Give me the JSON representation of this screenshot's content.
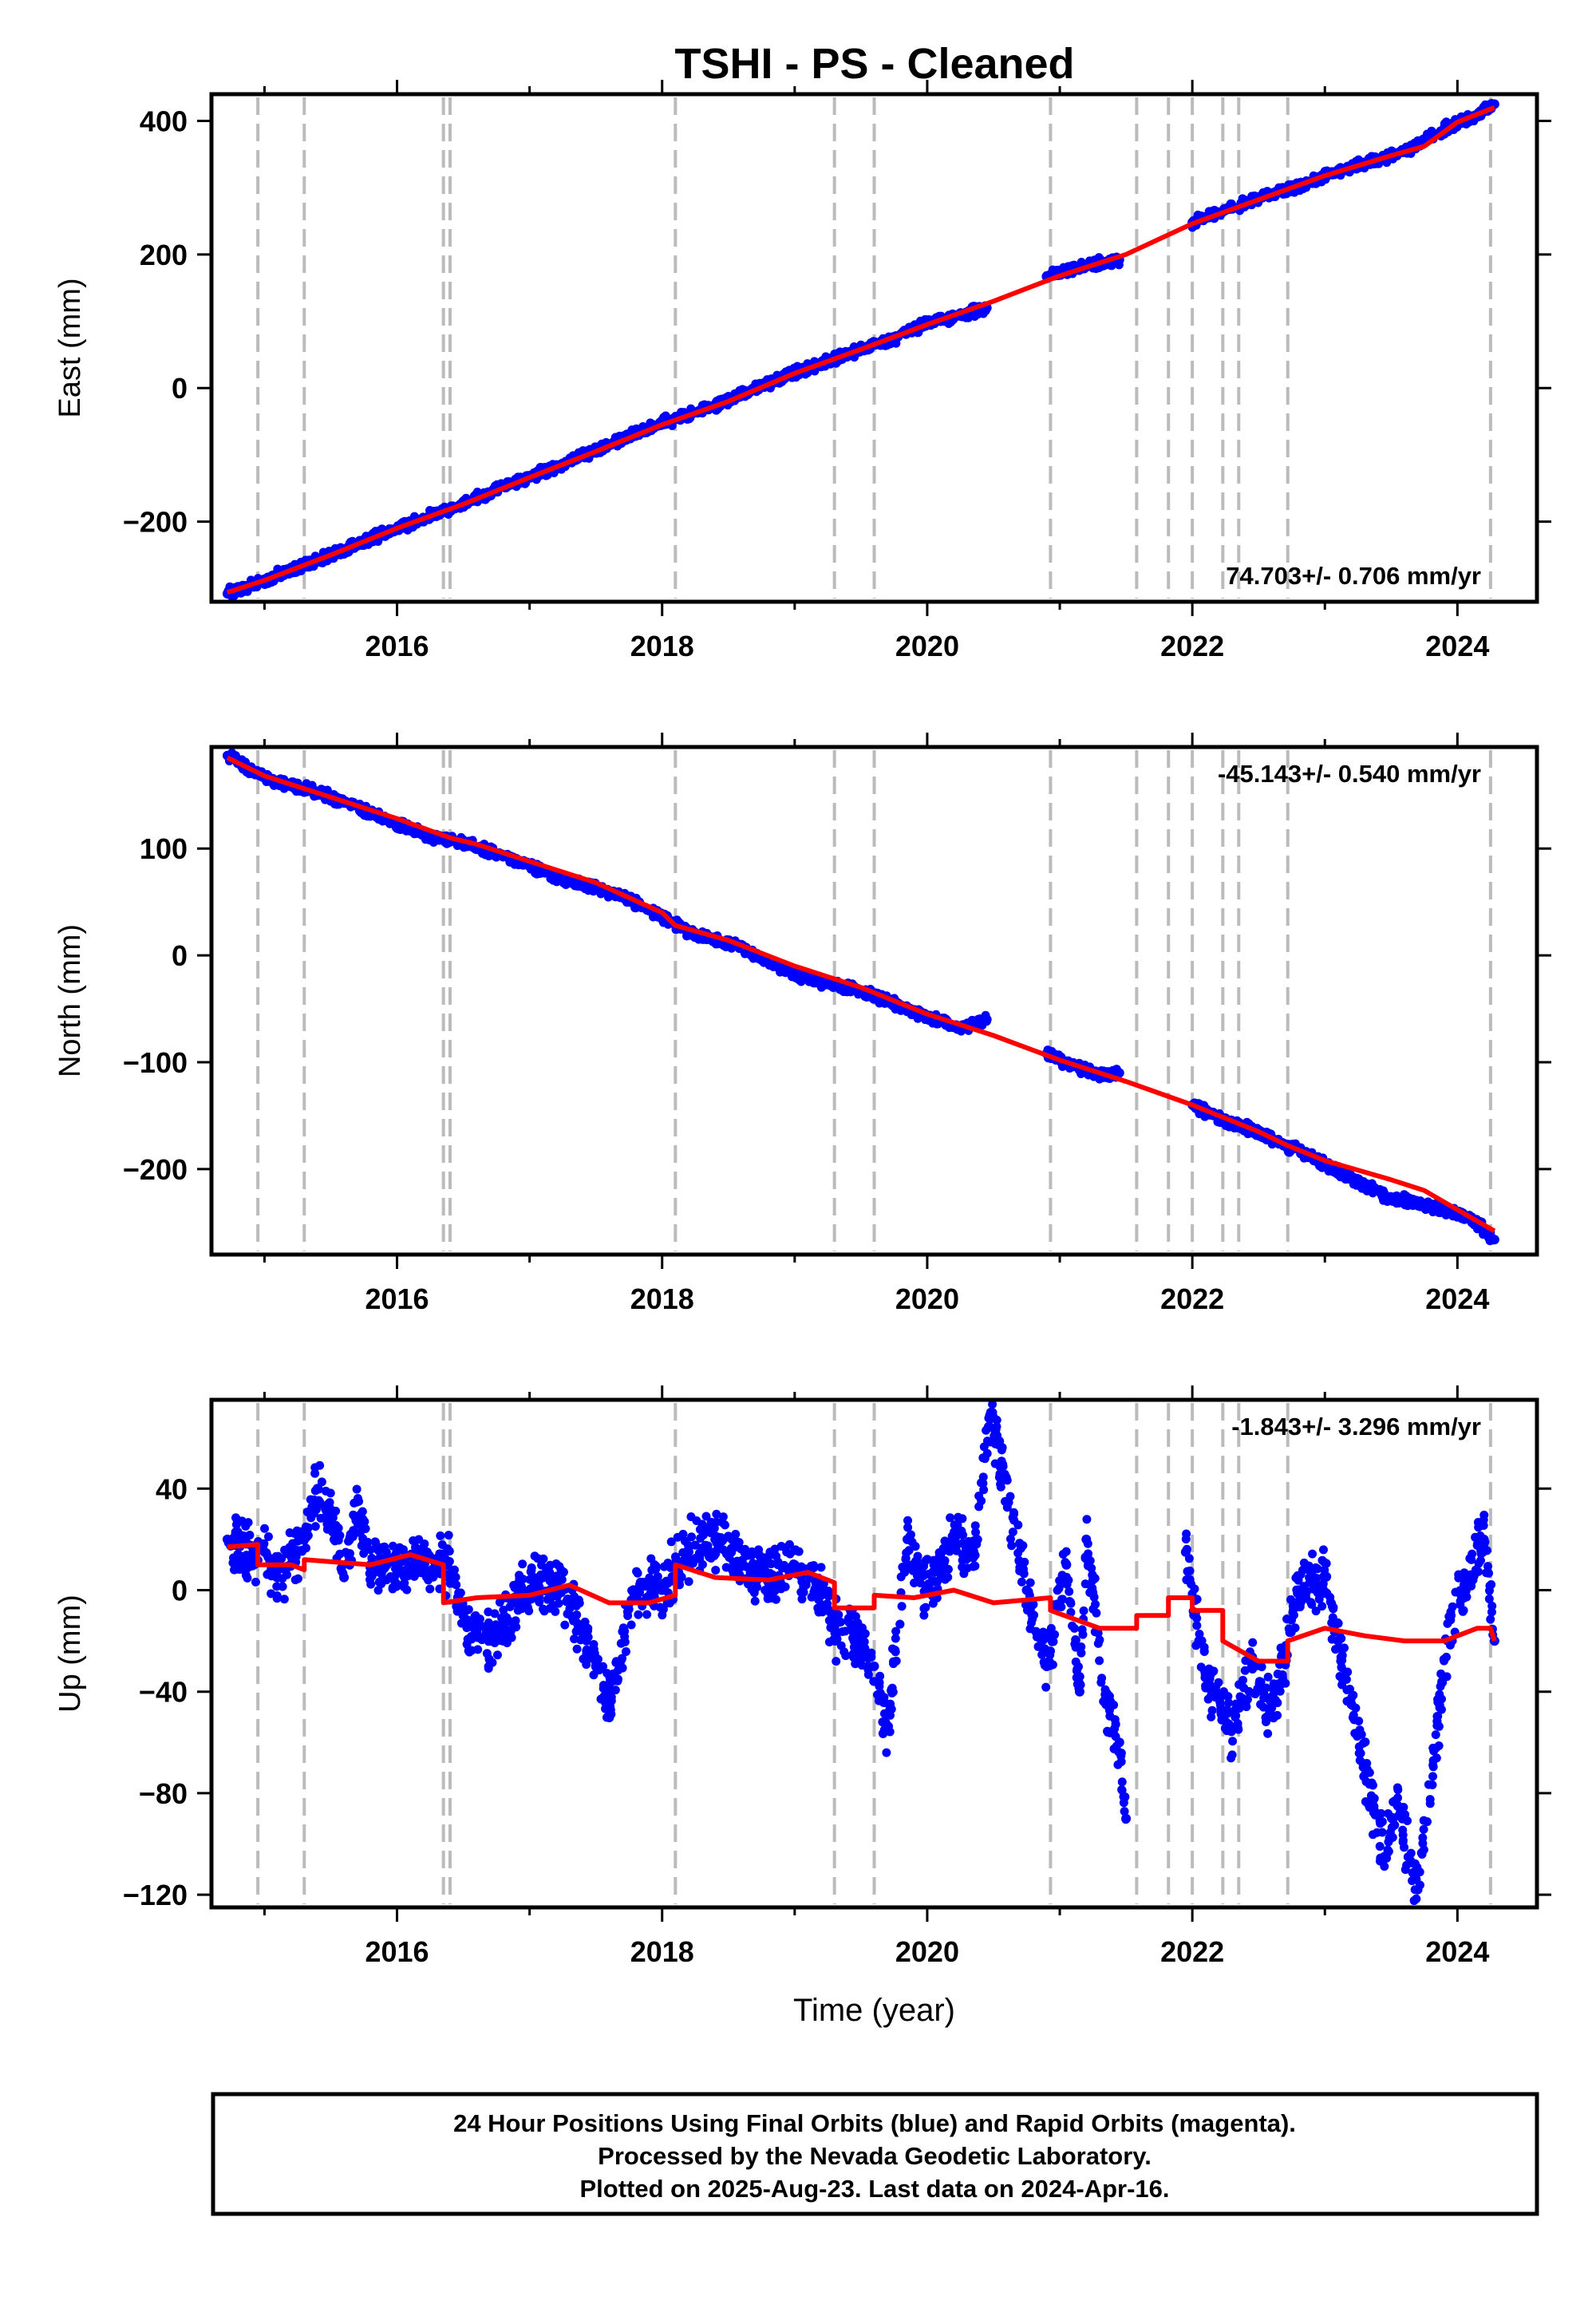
{
  "title": "TSHI  - PS - Cleaned",
  "footer": {
    "lines": [
      "24 Hour Positions Using Final Orbits (blue) and Rapid Orbits (magenta).",
      "Processed by the Nevada Geodetic Laboratory.",
      "Plotted on 2025-Aug-23. Last data on 2024-Apr-16."
    ]
  },
  "colors": {
    "points": "#0000ff",
    "model": "#ff0000",
    "breaks": "#bbbbbb",
    "axes": "#000000"
  },
  "chart_data": [
    {
      "type": "scatter",
      "panel": "east",
      "ylabel": "East (mm)",
      "xlabel": "",
      "rate_label": "74.703+/- 0.706 mm/yr",
      "xlim": [
        2014.6,
        2024.6
      ],
      "ylim": [
        -320,
        440
      ],
      "xticks": [
        2016,
        2018,
        2020,
        2022,
        2024
      ],
      "yticks": [
        -200,
        0,
        200,
        400
      ],
      "break_lines": [
        2014.95,
        2015.3,
        2016.35,
        2016.4,
        2018.1,
        2019.3,
        2019.6,
        2020.93,
        2021.58,
        2021.82,
        2022.0,
        2022.23,
        2022.35,
        2022.72,
        2024.25
      ],
      "series": [
        {
          "kind": "points",
          "x": [
            2014.72,
            2015.0,
            2015.25,
            2015.5,
            2015.75,
            2016.0,
            2016.25,
            2016.5,
            2016.75,
            2017.0,
            2017.25,
            2017.5,
            2017.75,
            2018.0,
            2018.25,
            2018.5,
            2018.75,
            2019.0,
            2019.25,
            2019.5,
            2019.75,
            2020.0,
            2020.25,
            2020.45,
            2020.9,
            2021.1,
            2021.3,
            2021.45,
            2022.0,
            2022.25,
            2022.5,
            2022.75,
            2023.0,
            2023.25,
            2023.5,
            2023.65,
            2023.9,
            2024.1,
            2024.28
          ],
          "y": [
            -308,
            -288,
            -268,
            -250,
            -230,
            -210,
            -192,
            -172,
            -152,
            -132,
            -114,
            -93,
            -72,
            -52,
            -36,
            -18,
            4,
            23,
            40,
            58,
            74,
            98,
            108,
            120,
            167,
            178,
            188,
            192,
            248,
            266,
            285,
            298,
            318,
            334,
            348,
            358,
            388,
            405,
            425
          ]
        },
        {
          "kind": "model",
          "x": [
            2014.72,
            2015.0,
            2015.5,
            2016.0,
            2016.5,
            2017.0,
            2017.5,
            2018.0,
            2018.5,
            2019.0,
            2019.5,
            2020.0,
            2020.5,
            2021.0,
            2021.5,
            2022.0,
            2022.5,
            2023.0,
            2023.5,
            2023.75,
            2024.0,
            2024.28
          ],
          "y": [
            -306,
            -288,
            -250,
            -210,
            -174,
            -134,
            -95,
            -55,
            -20,
            22,
            58,
            95,
            130,
            168,
            200,
            246,
            282,
            318,
            348,
            362,
            398,
            420
          ]
        }
      ]
    },
    {
      "type": "scatter",
      "panel": "north",
      "ylabel": "North (mm)",
      "xlabel": "",
      "rate_label": "-45.143+/- 0.540 mm/yr",
      "xlim": [
        2014.6,
        2024.6
      ],
      "ylim": [
        -280,
        195
      ],
      "xticks": [
        2016,
        2018,
        2020,
        2022,
        2024
      ],
      "yticks": [
        -200,
        -100,
        0,
        100
      ],
      "break_lines": [
        2014.95,
        2015.3,
        2016.35,
        2016.4,
        2018.1,
        2019.3,
        2019.6,
        2020.93,
        2021.58,
        2021.82,
        2022.0,
        2022.23,
        2022.35,
        2022.72,
        2024.25
      ],
      "series": [
        {
          "kind": "points",
          "x": [
            2014.72,
            2015.0,
            2015.25,
            2015.5,
            2015.75,
            2016.0,
            2016.25,
            2016.5,
            2016.75,
            2017.0,
            2017.25,
            2017.5,
            2017.75,
            2018.0,
            2018.25,
            2018.5,
            2018.75,
            2019.0,
            2019.25,
            2019.5,
            2019.75,
            2020.0,
            2020.25,
            2020.45,
            2020.9,
            2021.1,
            2021.3,
            2021.45,
            2022.0,
            2022.25,
            2022.5,
            2022.75,
            2023.0,
            2023.25,
            2023.5,
            2023.65,
            2023.9,
            2024.1,
            2024.28
          ],
          "y": [
            187,
            166,
            158,
            148,
            136,
            123,
            111,
            106,
            95,
            84,
            71,
            63,
            52,
            36,
            19,
            12,
            -2,
            -18,
            -26,
            -33,
            -45,
            -57,
            -68,
            -60,
            -92,
            -104,
            -112,
            -110,
            -140,
            -155,
            -165,
            -180,
            -196,
            -212,
            -228,
            -230,
            -238,
            -246,
            -266
          ]
        },
        {
          "kind": "model",
          "x": [
            2014.72,
            2015.0,
            2015.5,
            2016.0,
            2016.4,
            2016.6,
            2017.0,
            2017.5,
            2018.0,
            2018.1,
            2018.5,
            2019.0,
            2019.5,
            2020.0,
            2020.5,
            2021.0,
            2021.5,
            2022.0,
            2022.5,
            2022.72,
            2023.0,
            2023.5,
            2023.75,
            2024.0,
            2024.28
          ],
          "y": [
            185,
            168,
            148,
            128,
            110,
            104,
            88,
            68,
            40,
            28,
            14,
            -10,
            -30,
            -55,
            -75,
            -98,
            -118,
            -140,
            -165,
            -178,
            -192,
            -210,
            -220,
            -238,
            -258
          ]
        }
      ]
    },
    {
      "type": "scatter",
      "panel": "up",
      "ylabel": "Up (mm)",
      "xlabel": "Time (year)",
      "rate_label": "-1.843+/- 3.296 mm/yr",
      "xlim": [
        2014.6,
        2024.6
      ],
      "ylim": [
        -125,
        75
      ],
      "xticks": [
        2016,
        2018,
        2020,
        2022,
        2024
      ],
      "yticks": [
        -120,
        -80,
        -40,
        0,
        40
      ],
      "break_lines": [
        2014.95,
        2015.3,
        2016.35,
        2016.4,
        2018.1,
        2019.3,
        2019.6,
        2020.93,
        2021.58,
        2021.82,
        2022.0,
        2022.23,
        2022.35,
        2022.72,
        2024.25
      ],
      "series": [
        {
          "kind": "points",
          "x": [
            2014.72,
            2014.8,
            2015.0,
            2015.1,
            2015.3,
            2015.4,
            2015.5,
            2015.6,
            2015.7,
            2015.8,
            2016.0,
            2016.2,
            2016.38,
            2016.5,
            2016.7,
            2016.9,
            2017.0,
            2017.1,
            2017.3,
            2017.5,
            2017.6,
            2017.8,
            2018.0,
            2018.1,
            2018.2,
            2018.4,
            2018.6,
            2018.8,
            2019.0,
            2019.2,
            2019.3,
            2019.45,
            2019.6,
            2019.7,
            2019.85,
            2020.0,
            2020.1,
            2020.2,
            2020.35,
            2020.48,
            2020.75,
            2020.9,
            2021.05,
            2021.15,
            2021.2,
            2021.35,
            2021.45,
            2021.5,
            2021.95,
            2022.05,
            2022.15,
            2022.3,
            2022.45,
            2022.6,
            2022.8,
            2023.0,
            2023.1,
            2023.2,
            2023.3,
            2023.45,
            2023.55,
            2023.7,
            2023.95,
            2024.05,
            2024.2,
            2024.28
          ],
          "y": [
            20,
            14,
            15,
            5,
            20,
            40,
            30,
            5,
            35,
            10,
            8,
            12,
            10,
            -10,
            -20,
            -5,
            0,
            5,
            -5,
            -30,
            -45,
            0,
            0,
            10,
            15,
            20,
            10,
            5,
            10,
            0,
            -15,
            -20,
            -30,
            -55,
            20,
            0,
            10,
            20,
            15,
            70,
            0,
            -30,
            10,
            -40,
            20,
            -45,
            -60,
            -90,
            15,
            -20,
            -40,
            -55,
            -30,
            -50,
            0,
            5,
            -20,
            -45,
            -70,
            -105,
            -85,
            -118,
            -10,
            0,
            20,
            -20
          ]
        },
        {
          "kind": "model",
          "x": [
            2014.72,
            2014.95,
            2014.95,
            2015.2,
            2015.3,
            2015.3,
            2015.8,
            2016.1,
            2016.35,
            2016.35,
            2016.6,
            2017.0,
            2017.3,
            2017.6,
            2017.9,
            2018.1,
            2018.1,
            2018.4,
            2018.8,
            2019.1,
            2019.3,
            2019.3,
            2019.6,
            2019.6,
            2019.9,
            2020.2,
            2020.5,
            2020.93,
            2020.93,
            2021.3,
            2021.58,
            2021.58,
            2021.82,
            2021.82,
            2022.0,
            2022.0,
            2022.23,
            2022.23,
            2022.5,
            2022.72,
            2022.72,
            2023.0,
            2023.3,
            2023.6,
            2023.9,
            2024.15,
            2024.25,
            2024.28
          ],
          "y": [
            17,
            18,
            10,
            10,
            8,
            12,
            10,
            14,
            10,
            -5,
            -3,
            -2,
            2,
            -5,
            -5,
            -2,
            10,
            5,
            4,
            7,
            3,
            -7,
            -7,
            -2,
            -3,
            0,
            -5,
            -3,
            -8,
            -15,
            -15,
            -10,
            -10,
            -3,
            -3,
            -8,
            -8,
            -20,
            -28,
            -28,
            -20,
            -15,
            -18,
            -20,
            -20,
            -15,
            -15,
            -20
          ]
        }
      ]
    }
  ]
}
